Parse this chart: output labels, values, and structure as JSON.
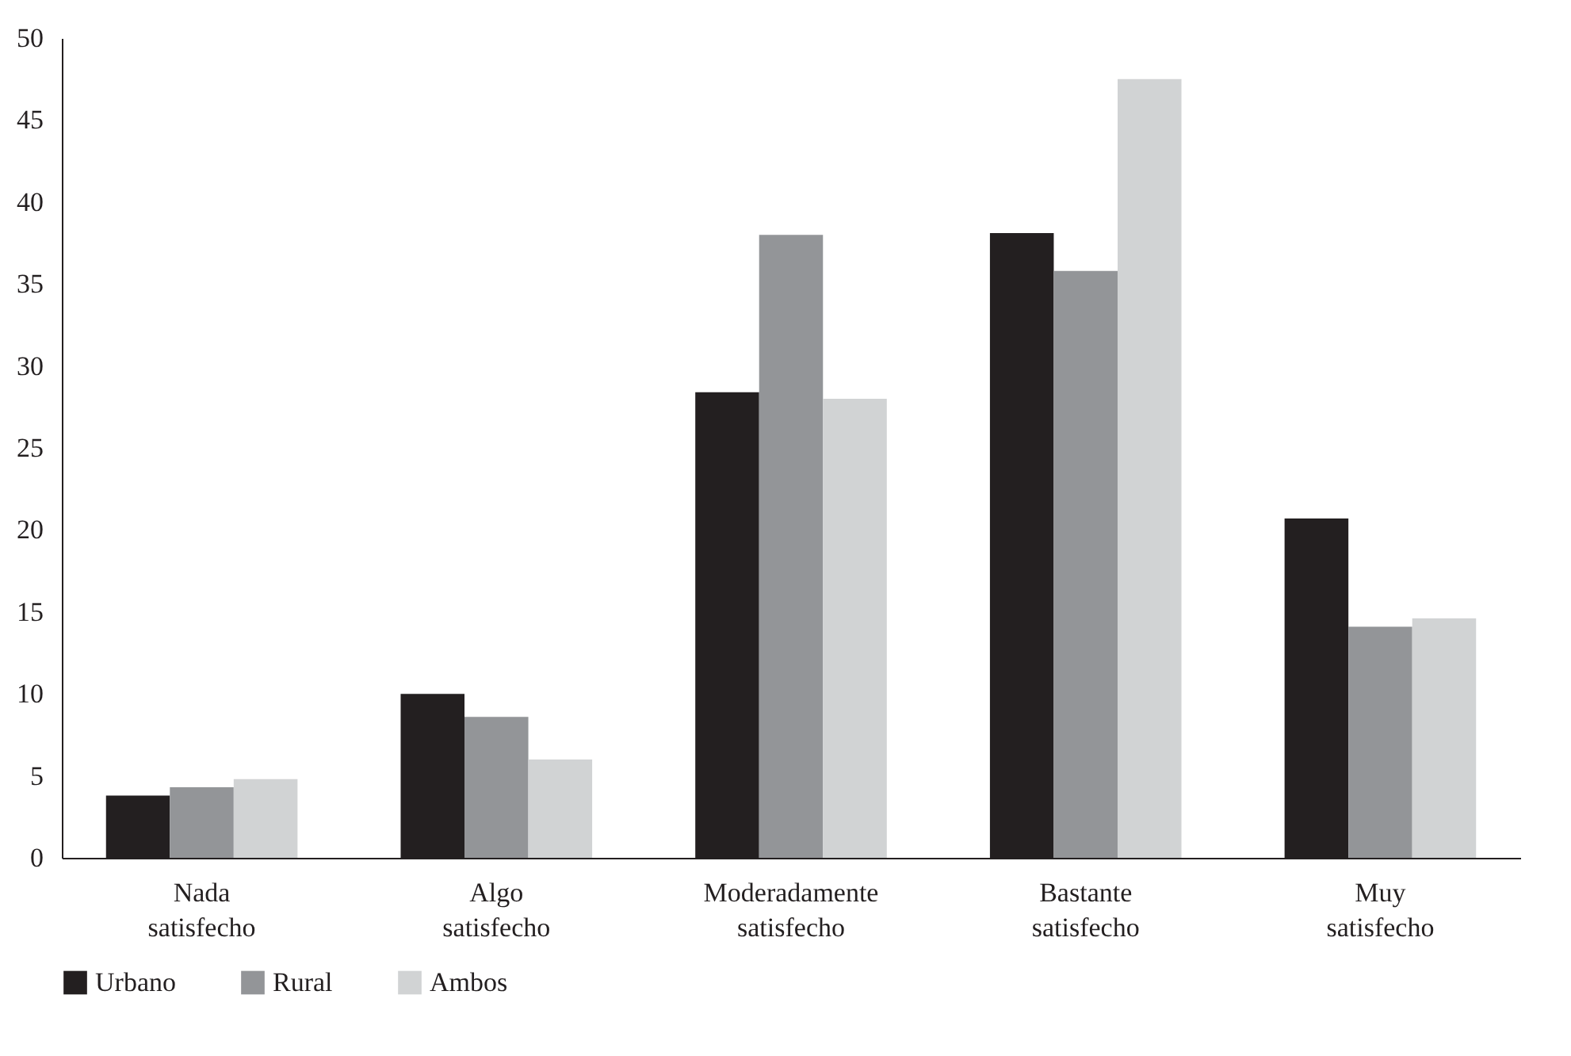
{
  "chart_data": {
    "type": "bar",
    "categories": [
      "Nada satisfecho",
      "Algo satisfecho",
      "Moderadamente satisfecho",
      "Bastante satisfecho",
      "Muy satisfecho"
    ],
    "series": [
      {
        "name": "Urbano",
        "color": "#231f20",
        "values": [
          3.8,
          10.0,
          28.4,
          38.1,
          20.7
        ]
      },
      {
        "name": "Rural",
        "color": "#939598",
        "values": [
          4.3,
          8.6,
          38.0,
          35.8,
          14.1
        ]
      },
      {
        "name": "Ambos",
        "color": "#d1d3d4",
        "values": [
          4.8,
          6.0,
          28.0,
          47.5,
          14.6
        ]
      }
    ],
    "ylim": [
      0,
      50
    ],
    "yticks": [
      0,
      5,
      10,
      15,
      20,
      25,
      30,
      35,
      40,
      45,
      50
    ],
    "grid": false,
    "legend": "bottom"
  }
}
